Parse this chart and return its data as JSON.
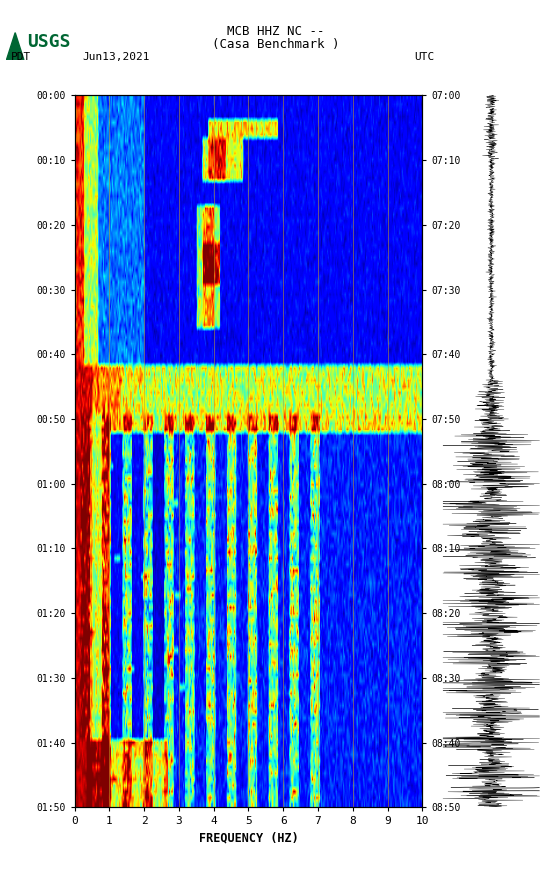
{
  "title_line1": "MCB HHZ NC --",
  "title_line2": "(Casa Benchmark )",
  "date": "Jun13,2021",
  "left_timezone": "PDT",
  "right_timezone": "UTC",
  "left_times": [
    "00:00",
    "00:10",
    "00:20",
    "00:30",
    "00:40",
    "00:50",
    "01:00",
    "01:10",
    "01:20",
    "01:30",
    "01:40",
    "01:50"
  ],
  "right_times": [
    "07:00",
    "07:10",
    "07:20",
    "07:30",
    "07:40",
    "07:50",
    "08:00",
    "08:10",
    "08:20",
    "08:30",
    "08:40",
    "08:50"
  ],
  "freq_min": 0,
  "freq_max": 10,
  "freq_ticks": [
    0,
    1,
    2,
    3,
    4,
    5,
    6,
    7,
    8,
    9,
    10
  ],
  "freq_label": "FREQUENCY (HZ)",
  "vertical_lines_freq": [
    1.0,
    2.0,
    3.0,
    4.0,
    5.0,
    6.0,
    7.0,
    8.0,
    9.0
  ],
  "background_color": "#ffffff",
  "spectrogram_cmap": "jet",
  "fig_width": 5.52,
  "fig_height": 8.92,
  "usgs_logo_color": "#006633",
  "font_family": "monospace",
  "n_time_bins": 116,
  "n_freq_bins": 300
}
